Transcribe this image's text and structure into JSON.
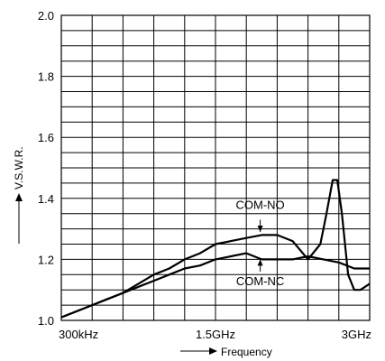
{
  "chart_data": {
    "type": "line",
    "title": "",
    "ylabel": "V.S.W.R.",
    "xlabel": "Frequency",
    "ylim": [
      1.0,
      2.0
    ],
    "xlim": [
      0,
      1
    ],
    "y_ticks": [
      1.0,
      1.2,
      1.4,
      1.6,
      1.8,
      2.0
    ],
    "y_tick_labels": [
      "1.0",
      "1.2",
      "1.4",
      "1.6",
      "1.8",
      "2.0"
    ],
    "x_tick_labels": [
      {
        "x": 0.0,
        "label": "300kHz"
      },
      {
        "x": 0.5,
        "label": "1.5GHz"
      },
      {
        "x": 1.0,
        "label": "3GHz"
      }
    ],
    "grid": true,
    "series": [
      {
        "name": "COM-NO",
        "points": [
          [
            0.0,
            1.01
          ],
          [
            0.05,
            1.03
          ],
          [
            0.1,
            1.05
          ],
          [
            0.15,
            1.07
          ],
          [
            0.2,
            1.09
          ],
          [
            0.25,
            1.12
          ],
          [
            0.3,
            1.15
          ],
          [
            0.35,
            1.17
          ],
          [
            0.4,
            1.2
          ],
          [
            0.45,
            1.22
          ],
          [
            0.5,
            1.25
          ],
          [
            0.55,
            1.26
          ],
          [
            0.6,
            1.27
          ],
          [
            0.65,
            1.28
          ],
          [
            0.7,
            1.28
          ],
          [
            0.75,
            1.26
          ],
          [
            0.8,
            1.2
          ],
          [
            0.84,
            1.25
          ],
          [
            0.86,
            1.35
          ],
          [
            0.88,
            1.46
          ],
          [
            0.895,
            1.46
          ],
          [
            0.91,
            1.35
          ],
          [
            0.93,
            1.15
          ],
          [
            0.95,
            1.1
          ],
          [
            0.97,
            1.1
          ],
          [
            1.0,
            1.12
          ]
        ]
      },
      {
        "name": "COM-NC",
        "points": [
          [
            0.0,
            1.01
          ],
          [
            0.05,
            1.03
          ],
          [
            0.1,
            1.05
          ],
          [
            0.15,
            1.07
          ],
          [
            0.2,
            1.09
          ],
          [
            0.25,
            1.11
          ],
          [
            0.3,
            1.13
          ],
          [
            0.35,
            1.15
          ],
          [
            0.4,
            1.17
          ],
          [
            0.45,
            1.18
          ],
          [
            0.5,
            1.2
          ],
          [
            0.55,
            1.21
          ],
          [
            0.6,
            1.22
          ],
          [
            0.65,
            1.2
          ],
          [
            0.7,
            1.2
          ],
          [
            0.75,
            1.2
          ],
          [
            0.8,
            1.21
          ],
          [
            0.85,
            1.2
          ],
          [
            0.9,
            1.19
          ],
          [
            0.95,
            1.17
          ],
          [
            1.0,
            1.17
          ]
        ]
      }
    ],
    "annotations": [
      {
        "text": "COM-NO",
        "series": "COM-NO"
      },
      {
        "text": "COM-NC",
        "series": "COM-NC"
      }
    ],
    "colors": {
      "line": "#000000",
      "grid": "#000000",
      "background": "#ffffff"
    }
  }
}
